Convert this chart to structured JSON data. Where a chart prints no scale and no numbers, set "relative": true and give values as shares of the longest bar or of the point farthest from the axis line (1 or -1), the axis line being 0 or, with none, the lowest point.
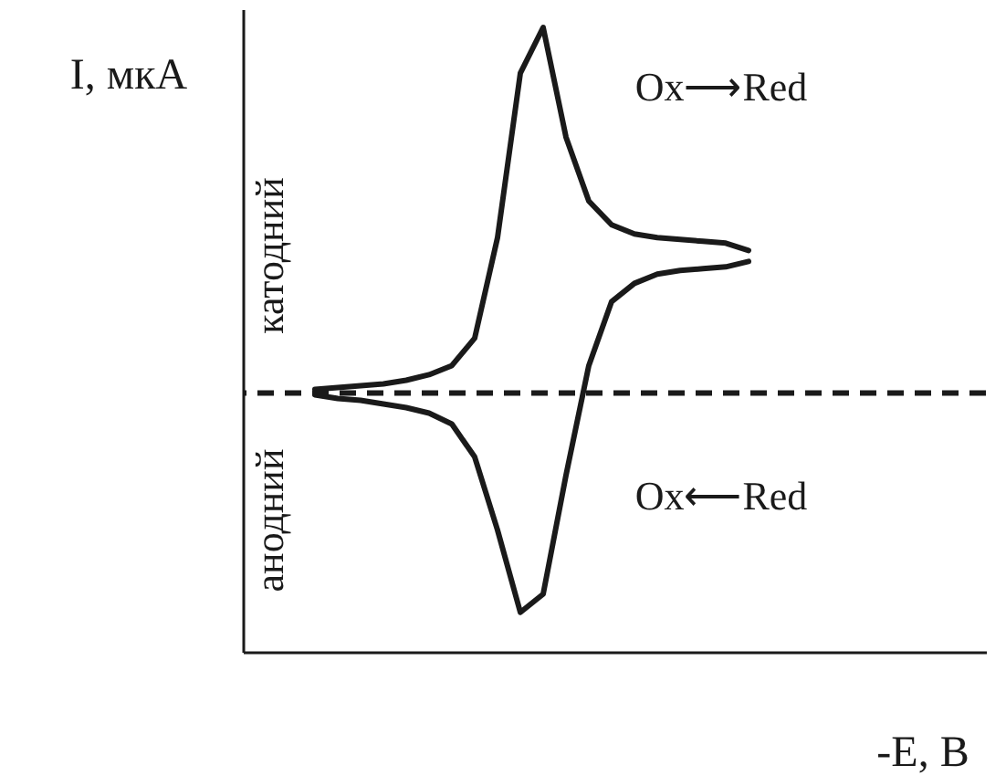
{
  "chart_data": {
    "type": "line",
    "relative": true,
    "xlabel": "-E, В",
    "ylabel": "I, мкА",
    "categories": [
      null,
      null,
      null,
      null,
      null,
      null,
      null,
      null,
      null,
      null,
      null,
      null,
      null,
      null,
      null,
      null,
      null,
      null,
      null,
      null,
      null,
      null,
      null,
      null,
      null,
      null,
      null,
      null,
      null,
      null,
      null,
      null,
      null
    ],
    "series": [
      {
        "color": "#1a1a1a",
        "values": [
          null,
          null,
          null,
          0.01,
          0.015,
          0.02,
          0.025,
          0.035,
          0.05,
          0.075,
          0.15,
          0.425,
          0.875,
          1,
          0.7,
          0.525,
          0.46,
          0.435,
          0.425,
          0.42,
          0.415,
          0.41,
          0.39,
          null,
          null,
          null,
          null,
          null,
          null,
          null,
          null,
          null,
          null
        ]
      },
      {
        "color": "#1a1a1a",
        "values": [
          null,
          null,
          null,
          -0.005,
          -0.015,
          -0.02,
          -0.03,
          -0.04,
          -0.055,
          -0.085,
          -0.175,
          -0.375,
          -0.6,
          -0.55,
          -0.225,
          0.075,
          0.25,
          0.3,
          0.325,
          0.335,
          0.34,
          0.345,
          0.36,
          null,
          null,
          null,
          null,
          null,
          null,
          null,
          null,
          null,
          null
        ]
      }
    ],
    "ref_lines": [
      {
        "axis": "y",
        "value": 0,
        "color": "#1a1a1a",
        "line_style": "dashed"
      }
    ],
    "annotations": [
      "Ox⟶Red",
      "Ox⟵Red",
      "катодний",
      "анодний"
    ]
  }
}
